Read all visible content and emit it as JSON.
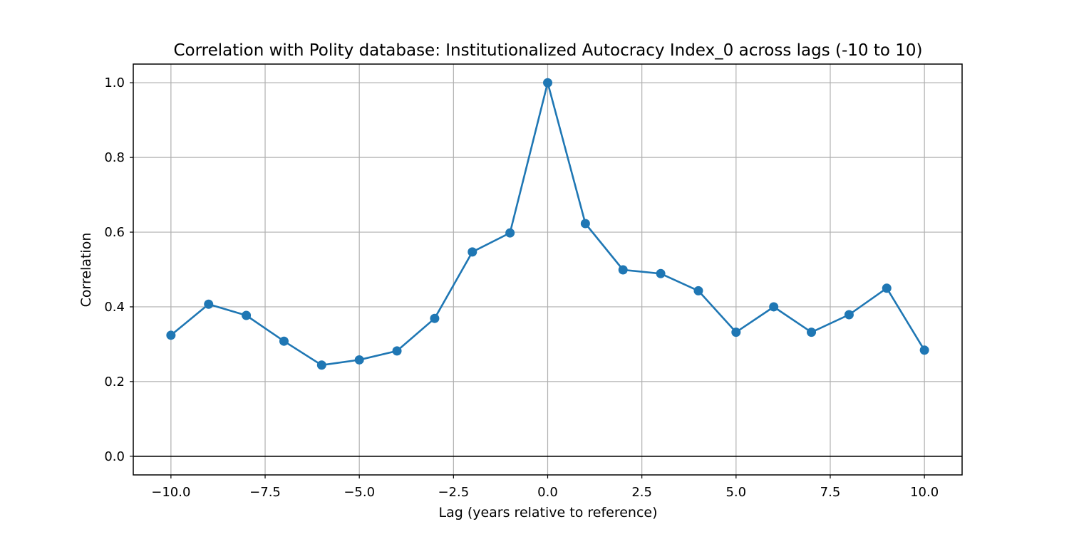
{
  "chart_data": {
    "type": "line",
    "title": "Correlation with Polity database: Institutionalized Autocracy Index_0 across lags (-10 to 10)",
    "xlabel": "Lag (years relative to reference)",
    "ylabel": "Correlation",
    "xlim": [
      -11,
      11
    ],
    "ylim": [
      -0.05,
      1.05
    ],
    "xticks": [
      -10.0,
      -7.5,
      -5.0,
      -2.5,
      0.0,
      2.5,
      5.0,
      7.5,
      10.0
    ],
    "xtick_labels": [
      "−10.0",
      "−7.5",
      "−5.0",
      "−2.5",
      "0.0",
      "2.5",
      "5.0",
      "7.5",
      "10.0"
    ],
    "yticks": [
      0.0,
      0.2,
      0.4,
      0.6,
      0.8,
      1.0
    ],
    "ytick_labels": [
      "0.0",
      "0.2",
      "0.4",
      "0.6",
      "0.8",
      "1.0"
    ],
    "grid": true,
    "reference_line_y": 0.0,
    "series": [
      {
        "color": "#1f77b4",
        "marker": "circle",
        "x": [
          -10,
          -9,
          -8,
          -7,
          -6,
          -5,
          -4,
          -3,
          -2,
          -1,
          0,
          1,
          2,
          3,
          4,
          5,
          6,
          7,
          8,
          9,
          10
        ],
        "y": [
          0.324,
          0.407,
          0.377,
          0.308,
          0.244,
          0.258,
          0.282,
          0.369,
          0.547,
          0.598,
          1.0,
          0.623,
          0.499,
          0.489,
          0.443,
          0.332,
          0.4,
          0.332,
          0.379,
          0.45,
          0.284
        ]
      }
    ]
  }
}
